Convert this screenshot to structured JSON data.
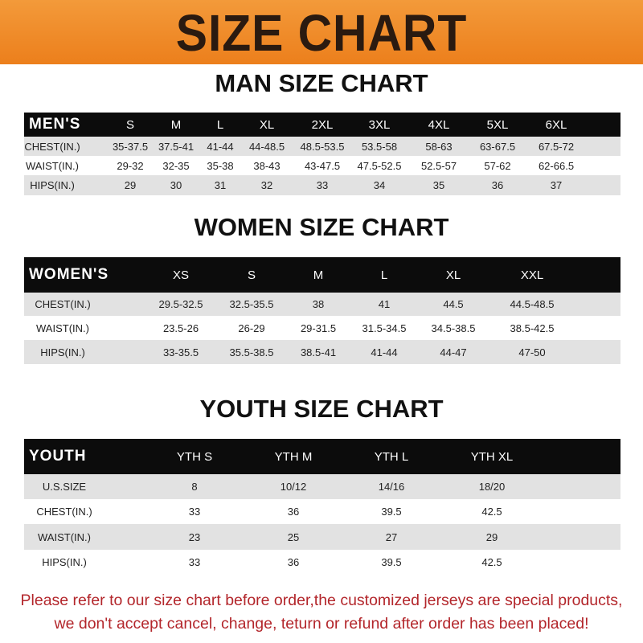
{
  "banner_title": "SIZE CHART",
  "men": {
    "title": "MAN SIZE CHART",
    "header": [
      "MEN'S",
      "S",
      "M",
      "L",
      "XL",
      "2XL",
      "3XL",
      "4XL",
      "5XL",
      "6XL"
    ],
    "rows": [
      [
        "CHEST(IN.)",
        "35-37.5",
        "37.5-41",
        "41-44",
        "44-48.5",
        "48.5-53.5",
        "53.5-58",
        "58-63",
        "63-67.5",
        "67.5-72"
      ],
      [
        "WAIST(IN.)",
        "29-32",
        "32-35",
        "35-38",
        "38-43",
        "43-47.5",
        "47.5-52.5",
        "52.5-57",
        "57-62",
        "62-66.5"
      ],
      [
        "HIPS(IN.)",
        "29",
        "30",
        "31",
        "32",
        "33",
        "34",
        "35",
        "36",
        "37"
      ]
    ]
  },
  "women": {
    "title": "WOMEN SIZE CHART",
    "header": [
      "WOMEN'S",
      "XS",
      "S",
      "M",
      "L",
      "XL",
      "XXL"
    ],
    "rows": [
      [
        "CHEST(IN.)",
        "29.5-32.5",
        "32.5-35.5",
        "38",
        "41",
        "44.5",
        "44.5-48.5"
      ],
      [
        "WAIST(IN.)",
        "23.5-26",
        "26-29",
        "29-31.5",
        "31.5-34.5",
        "34.5-38.5",
        "38.5-42.5"
      ],
      [
        "HIPS(IN.)",
        "33-35.5",
        "35.5-38.5",
        "38.5-41",
        "41-44",
        "44-47",
        "47-50"
      ]
    ]
  },
  "youth": {
    "title": "YOUTH SIZE CHART",
    "header": [
      "YOUTH",
      "YTH S",
      "YTH M",
      "YTH L",
      "YTH XL"
    ],
    "rows": [
      [
        "U.S.SIZE",
        "8",
        "10/12",
        "14/16",
        "18/20"
      ],
      [
        "CHEST(IN.)",
        "33",
        "36",
        "39.5",
        "42.5"
      ],
      [
        "WAIST(IN.)",
        "23",
        "25",
        "27",
        "29"
      ],
      [
        "HIPS(IN.)",
        "33",
        "36",
        "39.5",
        "42.5"
      ]
    ]
  },
  "notice": {
    "line1": "Please refer to our size chart before order,the customized jerseys are special products,",
    "line2": "we don't accept cancel, change, teturn or refund after order has been placed!"
  },
  "colors": {
    "banner": "#ee8420",
    "header_row": "#0c0c0c",
    "stripe": "#e2e2e2",
    "notice": "#b3262b"
  }
}
